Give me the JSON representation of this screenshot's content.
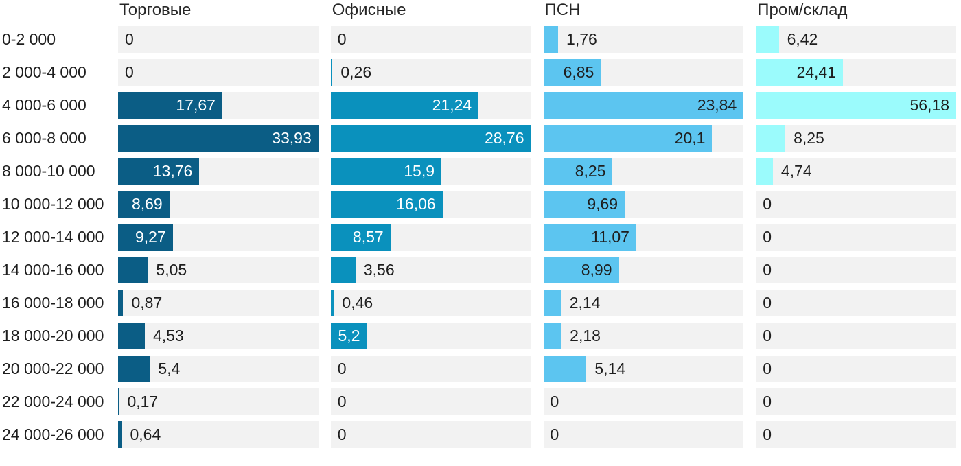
{
  "chart_data": {
    "type": "bar",
    "orientation": "horizontal",
    "layout": "small-multiples: 4 value columns sharing one category axis; each column scaled to its own max (max bar fills full track width)",
    "title": "",
    "xlabel": "",
    "ylabel": "",
    "grid": false,
    "legend_position": "column-headers-top",
    "decimal_separator": ",",
    "track_color": "#f2f2f2",
    "background": "#ffffff",
    "text_color": "#1e1e1e",
    "categories": [
      "0-2 000",
      "2 000-4 000",
      "4 000-6 000",
      "6 000-8 000",
      "8 000-10 000",
      "10 000-12 000",
      "12 000-14 000",
      "14 000-16 000",
      "16 000-18 000",
      "18 000-20 000",
      "20 000-22 000",
      "22 000-24 000",
      "24 000-26 000"
    ],
    "series": [
      {
        "name": "Торговые",
        "color": "#0b5d85",
        "inside_label_color": "#ffffff",
        "values": [
          0,
          0,
          17.67,
          33.93,
          13.76,
          8.69,
          9.27,
          5.05,
          0.87,
          4.53,
          5.4,
          0.17,
          0.64
        ],
        "label_inside": [
          false,
          false,
          true,
          true,
          true,
          true,
          true,
          false,
          false,
          false,
          false,
          false,
          false
        ]
      },
      {
        "name": "Офисные",
        "color": "#0a91bd",
        "inside_label_color": "#ffffff",
        "values": [
          0,
          0.26,
          21.24,
          28.76,
          15.9,
          16.06,
          8.57,
          3.56,
          0.46,
          5.2,
          0,
          0,
          0
        ],
        "label_inside": [
          false,
          false,
          true,
          true,
          true,
          true,
          true,
          false,
          false,
          true,
          false,
          false,
          false
        ]
      },
      {
        "name": "ПСН",
        "color": "#5cc5f0",
        "inside_label_color": "#1e1e1e",
        "values": [
          1.76,
          6.85,
          23.84,
          20.1,
          8.25,
          9.69,
          11.07,
          8.99,
          2.14,
          2.18,
          5.14,
          0,
          0
        ],
        "label_inside": [
          false,
          true,
          true,
          true,
          true,
          true,
          true,
          true,
          false,
          false,
          false,
          false,
          false
        ]
      },
      {
        "name": "Пром/склад",
        "color": "#9bfbfc",
        "inside_label_color": "#1e1e1e",
        "values": [
          6.42,
          24.41,
          56.18,
          8.25,
          4.74,
          0,
          0,
          0,
          0,
          0,
          0,
          0,
          0
        ],
        "label_inside": [
          false,
          true,
          true,
          false,
          false,
          false,
          false,
          false,
          false,
          false,
          false,
          false,
          false
        ]
      }
    ]
  }
}
